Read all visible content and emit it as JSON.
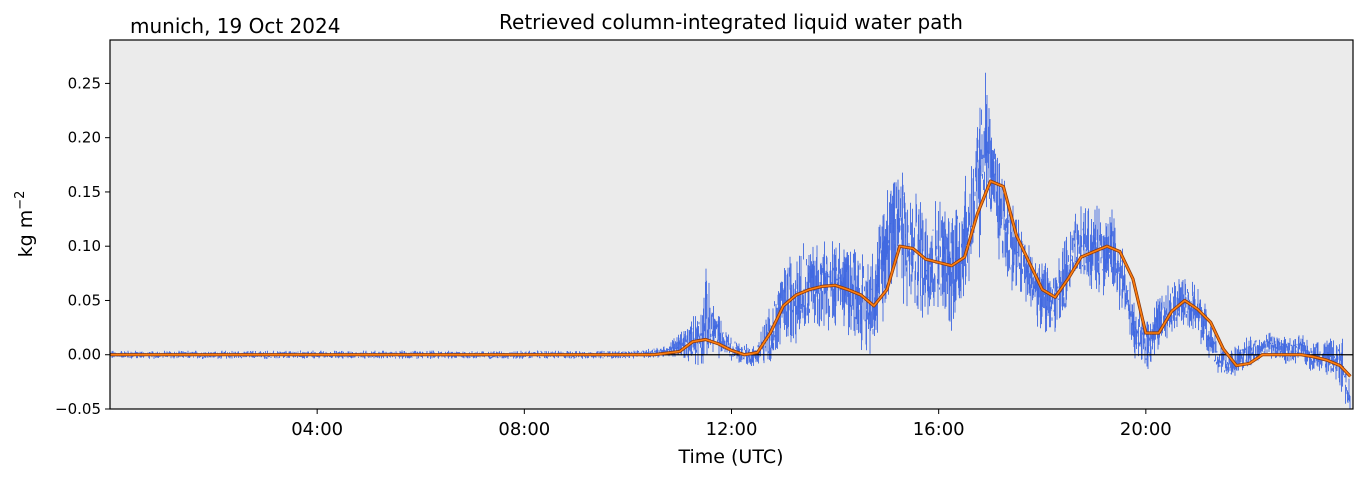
{
  "chart_data": {
    "type": "line",
    "title": "Retrieved column-integrated liquid water path",
    "subtitle": "munich, 19 Oct 2024",
    "xlabel": "Time (UTC)",
    "ylabel_base": "kg m",
    "ylabel_sup": "−2",
    "xlim_hours": [
      0,
      24
    ],
    "ylim": [
      -0.05,
      0.29
    ],
    "grid": false,
    "background": "#ebebeb",
    "xticks": [
      {
        "hour": 4,
        "label": "04:00"
      },
      {
        "hour": 8,
        "label": "08:00"
      },
      {
        "hour": 12,
        "label": "12:00"
      },
      {
        "hour": 16,
        "label": "16:00"
      },
      {
        "hour": 20,
        "label": "20:00"
      }
    ],
    "yticks": [
      {
        "value": -0.05,
        "label": "−0.05"
      },
      {
        "value": 0.0,
        "label": "0.00"
      },
      {
        "value": 0.05,
        "label": "0.05"
      },
      {
        "value": 0.1,
        "label": "0.10"
      },
      {
        "value": 0.15,
        "label": "0.15"
      },
      {
        "value": 0.2,
        "label": "0.20"
      },
      {
        "value": 0.25,
        "label": "0.25"
      }
    ],
    "zero_line": 0.0,
    "series": [
      {
        "role": "raw",
        "color": "#4169e1",
        "x_hours": [
          0,
          0.5,
          1,
          1.5,
          2,
          2.5,
          3,
          3.5,
          4,
          4.5,
          5,
          5.5,
          6,
          6.5,
          7,
          7.5,
          8,
          8.5,
          9,
          9.5,
          10,
          10.5,
          10.8,
          11,
          11.2,
          11.4,
          11.5,
          11.6,
          11.8,
          12,
          12.2,
          12.4,
          12.5,
          12.6,
          12.8,
          13,
          13.2,
          13.4,
          13.6,
          13.8,
          14,
          14.2,
          14.4,
          14.6,
          14.8,
          15,
          15.2,
          15.4,
          15.6,
          15.8,
          16,
          16.2,
          16.4,
          16.6,
          16.8,
          16.9,
          17,
          17.2,
          17.4,
          17.6,
          17.8,
          18,
          18.2,
          18.4,
          18.6,
          18.8,
          19,
          19.2,
          19.4,
          19.6,
          19.8,
          20,
          20.2,
          20.4,
          20.6,
          20.8,
          21,
          21.2,
          21.4,
          21.6,
          21.8,
          22,
          22.2,
          22.4,
          22.6,
          22.8,
          23,
          23.2,
          23.4,
          23.6,
          23.8,
          23.95
        ],
        "center": [
          0,
          0,
          0,
          0,
          0,
          0,
          0,
          0,
          0,
          0,
          0,
          0,
          0,
          0,
          0,
          0,
          0,
          0,
          0,
          0,
          0,
          0.002,
          0.004,
          0.008,
          0.012,
          0.02,
          0.035,
          0.025,
          0.015,
          0.005,
          0.002,
          -0.002,
          0,
          0.008,
          0.02,
          0.045,
          0.055,
          0.06,
          0.065,
          0.065,
          0.06,
          0.065,
          0.06,
          0.045,
          0.06,
          0.105,
          0.13,
          0.1,
          0.09,
          0.085,
          0.09,
          0.08,
          0.09,
          0.12,
          0.16,
          0.2,
          0.17,
          0.13,
          0.1,
          0.085,
          0.065,
          0.055,
          0.05,
          0.065,
          0.09,
          0.1,
          0.095,
          0.1,
          0.09,
          0.06,
          0.02,
          0.01,
          0.025,
          0.04,
          0.05,
          0.045,
          0.04,
          0.02,
          -0.005,
          -0.01,
          -0.005,
          0.005,
          0.005,
          0.01,
          0.005,
          0.005,
          0.005,
          0.0,
          0.0,
          -0.005,
          -0.01,
          -0.04
        ],
        "spread": [
          0.003,
          0.003,
          0.003,
          0.003,
          0.003,
          0.003,
          0.003,
          0.003,
          0.003,
          0.003,
          0.003,
          0.003,
          0.003,
          0.003,
          0.003,
          0.003,
          0.003,
          0.003,
          0.003,
          0.003,
          0.003,
          0.004,
          0.006,
          0.01,
          0.015,
          0.025,
          0.035,
          0.025,
          0.015,
          0.01,
          0.008,
          0.008,
          0.01,
          0.015,
          0.025,
          0.03,
          0.035,
          0.035,
          0.035,
          0.035,
          0.035,
          0.035,
          0.035,
          0.035,
          0.04,
          0.045,
          0.05,
          0.05,
          0.045,
          0.04,
          0.045,
          0.045,
          0.05,
          0.05,
          0.06,
          0.05,
          0.04,
          0.04,
          0.035,
          0.03,
          0.025,
          0.025,
          0.025,
          0.03,
          0.03,
          0.03,
          0.03,
          0.035,
          0.03,
          0.025,
          0.02,
          0.02,
          0.02,
          0.02,
          0.02,
          0.02,
          0.02,
          0.015,
          0.012,
          0.012,
          0.012,
          0.012,
          0.01,
          0.01,
          0.01,
          0.01,
          0.01,
          0.012,
          0.012,
          0.015,
          0.02,
          0.015
        ]
      },
      {
        "role": "smoothed",
        "color": "#ff7f0e",
        "outline": "#8b3a0e",
        "x_hours": [
          0,
          1,
          2,
          3,
          4,
          5,
          6,
          7,
          8,
          9,
          10,
          10.5,
          11,
          11.25,
          11.5,
          11.75,
          12,
          12.25,
          12.5,
          12.75,
          13,
          13.25,
          13.5,
          13.75,
          14,
          14.25,
          14.5,
          14.75,
          15,
          15.25,
          15.5,
          15.75,
          16,
          16.25,
          16.5,
          16.75,
          17,
          17.25,
          17.5,
          17.75,
          18,
          18.25,
          18.5,
          18.75,
          19,
          19.25,
          19.5,
          19.75,
          20,
          20.25,
          20.5,
          20.75,
          21,
          21.25,
          21.5,
          21.75,
          22,
          22.25,
          22.5,
          22.75,
          23,
          23.25,
          23.5,
          23.75,
          23.95
        ],
        "values": [
          0,
          0,
          0,
          0,
          0,
          0,
          0,
          0,
          0,
          0,
          0,
          0.0,
          0.003,
          0.012,
          0.014,
          0.01,
          0.004,
          0.0,
          0.002,
          0.02,
          0.045,
          0.055,
          0.06,
          0.063,
          0.064,
          0.06,
          0.055,
          0.045,
          0.06,
          0.1,
          0.098,
          0.088,
          0.085,
          0.082,
          0.09,
          0.13,
          0.16,
          0.155,
          0.11,
          0.085,
          0.06,
          0.053,
          0.07,
          0.09,
          0.095,
          0.1,
          0.095,
          0.07,
          0.02,
          0.02,
          0.04,
          0.05,
          0.042,
          0.03,
          0.005,
          -0.01,
          -0.008,
          0.0,
          0.0,
          0.0,
          0.0,
          -0.002,
          -0.005,
          -0.01,
          -0.02
        ]
      }
    ]
  }
}
